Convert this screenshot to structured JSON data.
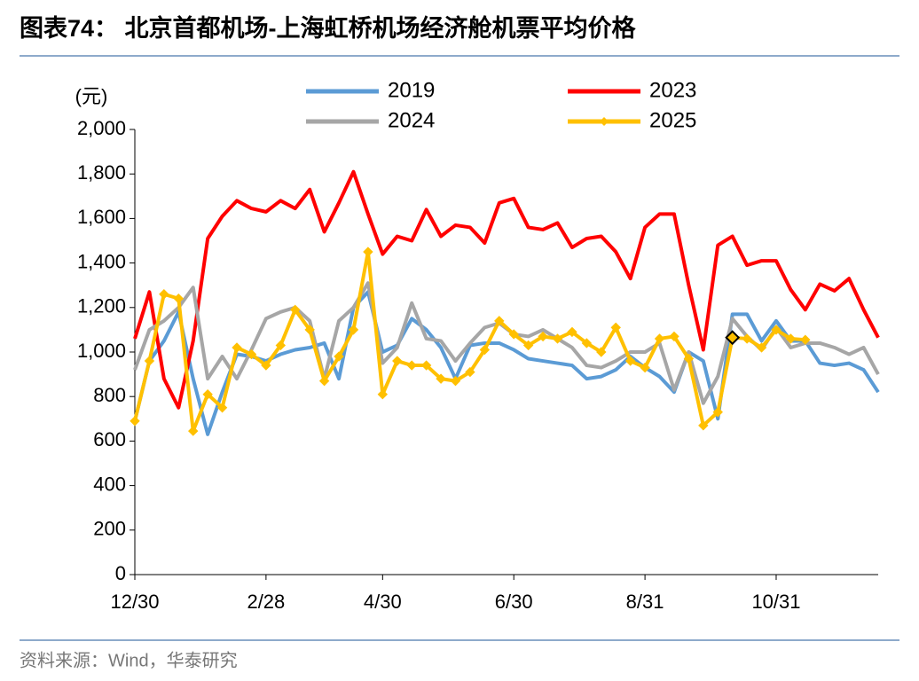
{
  "chart_data": {
    "type": "line",
    "title": "图表74： 北京首都机场-上海虹桥机场经济舱机票平均价格",
    "y_label": "(元)",
    "source": "资料来源：Wind，华泰研究",
    "categories": [
      "12/30",
      null,
      null,
      null,
      null,
      null,
      null,
      null,
      null,
      "2/28",
      null,
      null,
      null,
      null,
      null,
      null,
      null,
      "4/30",
      null,
      null,
      null,
      null,
      null,
      null,
      null,
      null,
      "6/30",
      null,
      null,
      null,
      null,
      null,
      null,
      null,
      null,
      "8/31",
      null,
      null,
      null,
      null,
      null,
      null,
      null,
      null,
      "10/31",
      null,
      null,
      null,
      null,
      null,
      null,
      null
    ],
    "series": [
      {
        "name": "2019",
        "color": "#5b9bd5",
        "values": [
          690,
          960,
          1050,
          1180,
          880,
          630,
          820,
          990,
          980,
          960,
          990,
          1010,
          1020,
          1040,
          880,
          1200,
          1270,
          1000,
          1030,
          1150,
          1100,
          1020,
          880,
          1030,
          1040,
          1040,
          1010,
          970,
          960,
          950,
          940,
          880,
          890,
          920,
          980,
          930,
          890,
          820,
          1000,
          960,
          700,
          1170,
          1170,
          1050,
          1140,
          1050,
          1050,
          950,
          940,
          950,
          920,
          820
        ]
      },
      {
        "name": "2023",
        "color": "#ff0000",
        "values": [
          1060,
          1270,
          880,
          750,
          1050,
          1510,
          1610,
          1680,
          1645,
          1630,
          1680,
          1645,
          1730,
          1540,
          1670,
          1810,
          1620,
          1440,
          1520,
          1500,
          1640,
          1520,
          1570,
          1560,
          1490,
          1670,
          1690,
          1560,
          1550,
          1580,
          1470,
          1510,
          1520,
          1450,
          1330,
          1560,
          1620,
          1620,
          1300,
          1010,
          1480,
          1520,
          1390,
          1410,
          1410,
          1280,
          1190,
          1305,
          1275,
          1330,
          1190,
          1065
        ]
      },
      {
        "name": "2024",
        "color": "#a6a6a6",
        "values": [
          920,
          1100,
          1140,
          1200,
          1290,
          880,
          980,
          880,
          1010,
          1150,
          1180,
          1200,
          1140,
          880,
          1140,
          1200,
          1310,
          950,
          1020,
          1220,
          1060,
          1050,
          960,
          1040,
          1110,
          1130,
          1080,
          1070,
          1100,
          1060,
          1020,
          940,
          930,
          960,
          1000,
          1000,
          1040,
          830,
          1000,
          770,
          890,
          1150,
          1070,
          1010,
          1110,
          1020,
          1040,
          1040,
          1020,
          990,
          1020,
          900
        ]
      },
      {
        "name": "2025",
        "color": "#ffc000",
        "marker": "diamond",
        "values": [
          690,
          960,
          1260,
          1240,
          645,
          810,
          750,
          1020,
          990,
          940,
          1030,
          1190,
          1100,
          870,
          980,
          1100,
          1450,
          810,
          960,
          940,
          940,
          880,
          870,
          910,
          1010,
          1140,
          1080,
          1030,
          1070,
          1060,
          1090,
          1040,
          1000,
          1110,
          960,
          930,
          1060,
          1070,
          970,
          670,
          730,
          1065,
          1060,
          1020,
          1100,
          1060,
          1055,
          null,
          null,
          null,
          null,
          null
        ],
        "highlight_index": 41
      }
    ],
    "ylim": [
      0,
      2000
    ],
    "yticks": [
      0,
      {
        "value": 200,
        "label": "200"
      },
      400,
      600,
      800,
      {
        "value": 1000,
        "label": "1,000"
      },
      {
        "value": 1200,
        "label": "1,200"
      },
      {
        "value": 1400,
        "label": "1,400"
      },
      {
        "value": 1600,
        "label": "1,600"
      },
      {
        "value": 1800,
        "label": "1,800"
      },
      {
        "value": 2000,
        "label": "2,000"
      }
    ]
  }
}
